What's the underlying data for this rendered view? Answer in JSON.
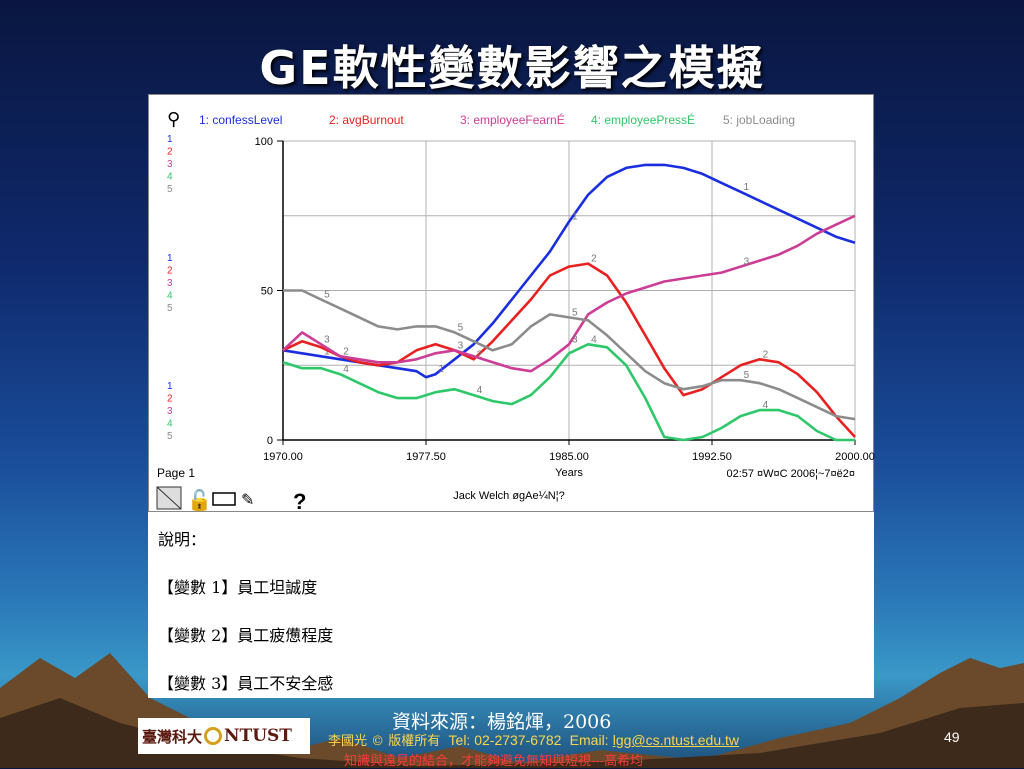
{
  "slide": {
    "title": "GE軟性變數影響之模擬",
    "source": "資料來源：楊銘煇，2006",
    "page_number": "49",
    "logo_text_cn": "臺灣科大",
    "logo_text_en": "NTUST",
    "copyright": "李國光 © 版權所有",
    "tel": "Tel: 02-2737-6782",
    "email_label": "Email:",
    "email": "lgg@cs.ntust.edu.tw",
    "motto": "知識與遠見的結合，才能夠避免無知與短視---高希均"
  },
  "chart_meta": {
    "page_label": "Page 1",
    "footer_time": "02:57 ¤W¤C  2006¦~7¤ë2¤",
    "footer_model": "Jack Welch øgAe¼N¦?",
    "axis_stacks": [
      [
        "1",
        "2",
        "3",
        "4",
        "5"
      ],
      [
        "1",
        "2",
        "3",
        "4",
        "5"
      ],
      [
        "1",
        "2",
        "3",
        "4",
        "5"
      ]
    ]
  },
  "description": {
    "heading": "說明：",
    "items": [
      "【變數 1】員工坦誠度",
      "【變數 2】員工疲憊程度",
      "【變數 3】員工不安全感"
    ]
  },
  "colors": {
    "s1": "#1a2ee0",
    "s2": "#e82020",
    "s3": "#cc3d96",
    "s4": "#2ec86a",
    "s5": "#8c8c8c"
  },
  "chart_data": {
    "type": "line",
    "title": "",
    "xlabel": "Years",
    "ylabel": "",
    "xlim": [
      1970,
      2000
    ],
    "ylim": [
      0,
      100
    ],
    "x_ticks": [
      "1970.00",
      "1977.50",
      "1985.00",
      "1992.50",
      "2000.00"
    ],
    "y_ticks": [
      "0",
      "50",
      "100"
    ],
    "grid": true,
    "legend_position": "top",
    "series": [
      {
        "name": "1: confessLevel",
        "id": "1",
        "x": [
          1970,
          1971,
          1972,
          1973,
          1974,
          1975,
          1976,
          1977,
          1977.5,
          1978,
          1979,
          1980,
          1981,
          1982,
          1983,
          1984,
          1985,
          1986,
          1987,
          1988,
          1989,
          1990,
          1991,
          1992,
          1993,
          1994,
          1995,
          1996,
          1997,
          1998,
          1999,
          2000
        ],
        "y": [
          30,
          29,
          28,
          27,
          26,
          25,
          24,
          23,
          21,
          22,
          27,
          32,
          39,
          47,
          55,
          63,
          73,
          82,
          88,
          91,
          92,
          92,
          91,
          89,
          86,
          83,
          80,
          77,
          74,
          71,
          68,
          66
        ]
      },
      {
        "name": "2: avgBurnout",
        "id": "2",
        "x": [
          1970,
          1971,
          1972,
          1973,
          1974,
          1975,
          1976,
          1977,
          1978,
          1979,
          1980,
          1981,
          1982,
          1983,
          1984,
          1985,
          1986,
          1987,
          1988,
          1989,
          1990,
          1991,
          1992,
          1993,
          1994,
          1995,
          1996,
          1997,
          1998,
          1999,
          2000
        ],
        "y": [
          30,
          33,
          31,
          28,
          26,
          25,
          26,
          30,
          32,
          30,
          27,
          33,
          40,
          47,
          55,
          58,
          59,
          55,
          46,
          35,
          24,
          15,
          17,
          21,
          25,
          27,
          26,
          22,
          16,
          8,
          1
        ]
      },
      {
        "name": "3: employeeFearnÉ",
        "id": "3",
        "x": [
          1970,
          1971,
          1972,
          1973,
          1974,
          1975,
          1976,
          1977,
          1978,
          1979,
          1980,
          1981,
          1982,
          1983,
          1984,
          1985,
          1986,
          1987,
          1988,
          1989,
          1990,
          1991,
          1992,
          1993,
          1994,
          1995,
          1996,
          1997,
          1998,
          1999,
          2000
        ],
        "y": [
          30,
          36,
          32,
          28,
          27,
          26,
          26,
          27,
          29,
          30,
          28,
          26,
          24,
          23,
          27,
          32,
          42,
          46,
          49,
          51,
          53,
          54,
          55,
          56,
          58,
          60,
          62,
          65,
          69,
          72,
          75
        ]
      },
      {
        "name": "4: employeePressÉ",
        "id": "4",
        "x": [
          1970,
          1971,
          1972,
          1973,
          1974,
          1975,
          1976,
          1977,
          1978,
          1979,
          1980,
          1981,
          1982,
          1983,
          1984,
          1985,
          1986,
          1987,
          1988,
          1989,
          1990,
          1991,
          1992,
          1993,
          1994,
          1995,
          1996,
          1997,
          1998,
          1999,
          2000
        ],
        "y": [
          26,
          24,
          24,
          22,
          19,
          16,
          14,
          14,
          16,
          17,
          15,
          13,
          12,
          15,
          21,
          29,
          32,
          31,
          25,
          14,
          1,
          0,
          1,
          4,
          8,
          10,
          10,
          8,
          3,
          0,
          0
        ]
      },
      {
        "name": "5: jobLoading",
        "id": "5",
        "x": [
          1970,
          1971,
          1972,
          1973,
          1974,
          1975,
          1976,
          1977,
          1978,
          1979,
          1980,
          1981,
          1982,
          1983,
          1984,
          1985,
          1986,
          1987,
          1988,
          1989,
          1990,
          1991,
          1992,
          1993,
          1994,
          1995,
          1996,
          1997,
          1998,
          1999,
          2000
        ],
        "y": [
          50,
          50,
          47,
          44,
          41,
          38,
          37,
          38,
          38,
          36,
          33,
          30,
          32,
          38,
          42,
          41,
          40,
          35,
          29,
          23,
          19,
          17,
          18,
          20,
          20,
          19,
          17,
          14,
          11,
          8,
          7
        ]
      }
    ]
  }
}
